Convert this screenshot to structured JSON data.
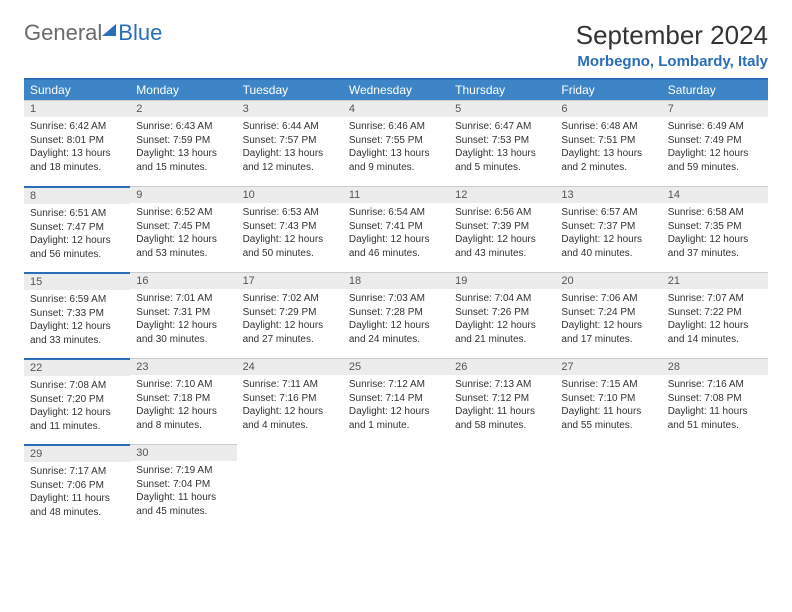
{
  "logo": {
    "general": "General",
    "blue": "Blue"
  },
  "title": "September 2024",
  "location": "Morbegno, Lombardy, Italy",
  "weekdays": [
    "Sunday",
    "Monday",
    "Tuesday",
    "Wednesday",
    "Thursday",
    "Friday",
    "Saturday"
  ],
  "colors": {
    "header_bar": "#3d85c6",
    "accent": "#2a6db8",
    "daynum_bg": "#ececec",
    "text": "#333333"
  },
  "days": [
    {
      "n": 1,
      "sunrise": "6:42 AM",
      "sunset": "8:01 PM",
      "day_h": 13,
      "day_m": 18
    },
    {
      "n": 2,
      "sunrise": "6:43 AM",
      "sunset": "7:59 PM",
      "day_h": 13,
      "day_m": 15
    },
    {
      "n": 3,
      "sunrise": "6:44 AM",
      "sunset": "7:57 PM",
      "day_h": 13,
      "day_m": 12
    },
    {
      "n": 4,
      "sunrise": "6:46 AM",
      "sunset": "7:55 PM",
      "day_h": 13,
      "day_m": 9
    },
    {
      "n": 5,
      "sunrise": "6:47 AM",
      "sunset": "7:53 PM",
      "day_h": 13,
      "day_m": 5
    },
    {
      "n": 6,
      "sunrise": "6:48 AM",
      "sunset": "7:51 PM",
      "day_h": 13,
      "day_m": 2
    },
    {
      "n": 7,
      "sunrise": "6:49 AM",
      "sunset": "7:49 PM",
      "day_h": 12,
      "day_m": 59
    },
    {
      "n": 8,
      "sunrise": "6:51 AM",
      "sunset": "7:47 PM",
      "day_h": 12,
      "day_m": 56
    },
    {
      "n": 9,
      "sunrise": "6:52 AM",
      "sunset": "7:45 PM",
      "day_h": 12,
      "day_m": 53
    },
    {
      "n": 10,
      "sunrise": "6:53 AM",
      "sunset": "7:43 PM",
      "day_h": 12,
      "day_m": 50
    },
    {
      "n": 11,
      "sunrise": "6:54 AM",
      "sunset": "7:41 PM",
      "day_h": 12,
      "day_m": 46
    },
    {
      "n": 12,
      "sunrise": "6:56 AM",
      "sunset": "7:39 PM",
      "day_h": 12,
      "day_m": 43
    },
    {
      "n": 13,
      "sunrise": "6:57 AM",
      "sunset": "7:37 PM",
      "day_h": 12,
      "day_m": 40
    },
    {
      "n": 14,
      "sunrise": "6:58 AM",
      "sunset": "7:35 PM",
      "day_h": 12,
      "day_m": 37
    },
    {
      "n": 15,
      "sunrise": "6:59 AM",
      "sunset": "7:33 PM",
      "day_h": 12,
      "day_m": 33
    },
    {
      "n": 16,
      "sunrise": "7:01 AM",
      "sunset": "7:31 PM",
      "day_h": 12,
      "day_m": 30
    },
    {
      "n": 17,
      "sunrise": "7:02 AM",
      "sunset": "7:29 PM",
      "day_h": 12,
      "day_m": 27
    },
    {
      "n": 18,
      "sunrise": "7:03 AM",
      "sunset": "7:28 PM",
      "day_h": 12,
      "day_m": 24
    },
    {
      "n": 19,
      "sunrise": "7:04 AM",
      "sunset": "7:26 PM",
      "day_h": 12,
      "day_m": 21
    },
    {
      "n": 20,
      "sunrise": "7:06 AM",
      "sunset": "7:24 PM",
      "day_h": 12,
      "day_m": 17
    },
    {
      "n": 21,
      "sunrise": "7:07 AM",
      "sunset": "7:22 PM",
      "day_h": 12,
      "day_m": 14
    },
    {
      "n": 22,
      "sunrise": "7:08 AM",
      "sunset": "7:20 PM",
      "day_h": 12,
      "day_m": 11
    },
    {
      "n": 23,
      "sunrise": "7:10 AM",
      "sunset": "7:18 PM",
      "day_h": 12,
      "day_m": 8
    },
    {
      "n": 24,
      "sunrise": "7:11 AM",
      "sunset": "7:16 PM",
      "day_h": 12,
      "day_m": 4
    },
    {
      "n": 25,
      "sunrise": "7:12 AM",
      "sunset": "7:14 PM",
      "day_h": 12,
      "day_m": 1
    },
    {
      "n": 26,
      "sunrise": "7:13 AM",
      "sunset": "7:12 PM",
      "day_h": 11,
      "day_m": 58
    },
    {
      "n": 27,
      "sunrise": "7:15 AM",
      "sunset": "7:10 PM",
      "day_h": 11,
      "day_m": 55
    },
    {
      "n": 28,
      "sunrise": "7:16 AM",
      "sunset": "7:08 PM",
      "day_h": 11,
      "day_m": 51
    },
    {
      "n": 29,
      "sunrise": "7:17 AM",
      "sunset": "7:06 PM",
      "day_h": 11,
      "day_m": 48
    },
    {
      "n": 30,
      "sunrise": "7:19 AM",
      "sunset": "7:04 PM",
      "day_h": 11,
      "day_m": 45
    }
  ],
  "labels": {
    "sunrise": "Sunrise:",
    "sunset": "Sunset:",
    "daylight": "Daylight:",
    "hours": "hours",
    "and": "and",
    "minutes": "minutes.",
    "minute": "minute."
  }
}
